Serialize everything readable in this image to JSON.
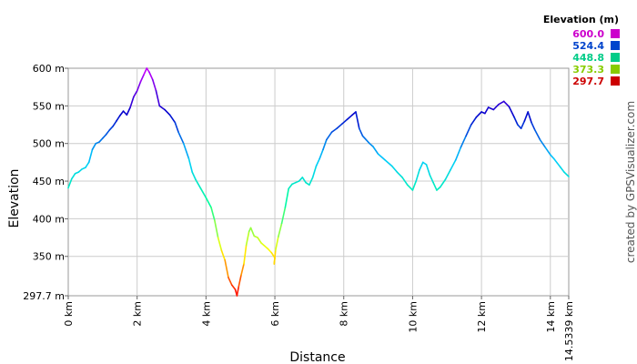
{
  "chart_data": {
    "type": "line",
    "xlabel": "Distance",
    "ylabel": "Elevation",
    "xlim": [
      0,
      14.5339
    ],
    "ylim": [
      297.7,
      600
    ],
    "x_ticks": [
      {
        "value": 0,
        "label": "0 km"
      },
      {
        "value": 2,
        "label": "2 km"
      },
      {
        "value": 4,
        "label": "4 km"
      },
      {
        "value": 6,
        "label": "6 km"
      },
      {
        "value": 8,
        "label": "8 km"
      },
      {
        "value": 10,
        "label": "10 km"
      },
      {
        "value": 12,
        "label": "12 km"
      },
      {
        "value": 14,
        "label": "14 km"
      },
      {
        "value": 14.5339,
        "label": "14.5339 km"
      }
    ],
    "y_ticks": [
      {
        "value": 297.7,
        "label": "297.7 m"
      },
      {
        "value": 350,
        "label": "350 m"
      },
      {
        "value": 400,
        "label": "400 m"
      },
      {
        "value": 450,
        "label": "450 m"
      },
      {
        "value": 500,
        "label": "500 m"
      },
      {
        "value": 550,
        "label": "550 m"
      },
      {
        "value": 600,
        "label": "600 m"
      }
    ],
    "grid": true,
    "legend": {
      "title": "Elevation (m)",
      "position": "top-right",
      "entries": [
        {
          "label": "600.0",
          "color": "#cc00cc"
        },
        {
          "label": "524.4",
          "color": "#0044cc"
        },
        {
          "label": "448.8",
          "color": "#00cc88"
        },
        {
          "label": "373.3",
          "color": "#88cc00"
        },
        {
          "label": "297.7",
          "color": "#cc0000"
        }
      ]
    },
    "color_scale": [
      "#ff0000",
      "#ffff00",
      "#00ff99",
      "#00ccff",
      "#0000cc",
      "#cc00ff"
    ],
    "points": [
      [
        0.0,
        441
      ],
      [
        0.1,
        453
      ],
      [
        0.2,
        460
      ],
      [
        0.3,
        462
      ],
      [
        0.4,
        466
      ],
      [
        0.5,
        468
      ],
      [
        0.6,
        475
      ],
      [
        0.7,
        492
      ],
      [
        0.8,
        500
      ],
      [
        0.9,
        502
      ],
      [
        1.0,
        507
      ],
      [
        1.1,
        512
      ],
      [
        1.2,
        518
      ],
      [
        1.3,
        523
      ],
      [
        1.4,
        530
      ],
      [
        1.5,
        537
      ],
      [
        1.55,
        540
      ],
      [
        1.6,
        543
      ],
      [
        1.7,
        538
      ],
      [
        1.8,
        548
      ],
      [
        1.9,
        562
      ],
      [
        2.0,
        570
      ],
      [
        2.1,
        582
      ],
      [
        2.2,
        592
      ],
      [
        2.28,
        600
      ],
      [
        2.35,
        595
      ],
      [
        2.45,
        585
      ],
      [
        2.55,
        570
      ],
      [
        2.65,
        550
      ],
      [
        2.8,
        545
      ],
      [
        2.95,
        538
      ],
      [
        3.1,
        528
      ],
      [
        3.2,
        515
      ],
      [
        3.35,
        500
      ],
      [
        3.5,
        480
      ],
      [
        3.6,
        462
      ],
      [
        3.7,
        452
      ],
      [
        3.85,
        440
      ],
      [
        4.0,
        428
      ],
      [
        4.15,
        415
      ],
      [
        4.25,
        398
      ],
      [
        4.35,
        375
      ],
      [
        4.45,
        358
      ],
      [
        4.55,
        345
      ],
      [
        4.65,
        322
      ],
      [
        4.75,
        312
      ],
      [
        4.85,
        306
      ],
      [
        4.9,
        297.7
      ],
      [
        4.95,
        310
      ],
      [
        5.02,
        325
      ],
      [
        5.1,
        340
      ],
      [
        5.17,
        365
      ],
      [
        5.25,
        383
      ],
      [
        5.3,
        388
      ],
      [
        5.4,
        377
      ],
      [
        5.5,
        375
      ],
      [
        5.6,
        368
      ],
      [
        5.7,
        364
      ],
      [
        5.8,
        360
      ],
      [
        5.9,
        355
      ],
      [
        6.0,
        348
      ],
      [
        5.98,
        340
      ],
      [
        6.02,
        358
      ],
      [
        6.1,
        376
      ],
      [
        6.2,
        394
      ],
      [
        6.3,
        415
      ],
      [
        6.4,
        440
      ],
      [
        6.5,
        446
      ],
      [
        6.6,
        448
      ],
      [
        6.7,
        450
      ],
      [
        6.8,
        455
      ],
      [
        6.9,
        448
      ],
      [
        7.0,
        445
      ],
      [
        7.1,
        455
      ],
      [
        7.2,
        470
      ],
      [
        7.3,
        480
      ],
      [
        7.4,
        492
      ],
      [
        7.5,
        505
      ],
      [
        7.65,
        515
      ],
      [
        7.8,
        520
      ],
      [
        7.95,
        526
      ],
      [
        8.1,
        532
      ],
      [
        8.25,
        538
      ],
      [
        8.35,
        542
      ],
      [
        8.45,
        520
      ],
      [
        8.55,
        510
      ],
      [
        8.65,
        505
      ],
      [
        8.75,
        500
      ],
      [
        8.85,
        496
      ],
      [
        9.0,
        486
      ],
      [
        9.2,
        478
      ],
      [
        9.4,
        470
      ],
      [
        9.55,
        462
      ],
      [
        9.7,
        455
      ],
      [
        9.85,
        445
      ],
      [
        10.0,
        438
      ],
      [
        10.1,
        450
      ],
      [
        10.2,
        465
      ],
      [
        10.3,
        475
      ],
      [
        10.4,
        472
      ],
      [
        10.5,
        458
      ],
      [
        10.6,
        448
      ],
      [
        10.7,
        438
      ],
      [
        10.8,
        442
      ],
      [
        10.95,
        452
      ],
      [
        11.1,
        465
      ],
      [
        11.25,
        478
      ],
      [
        11.4,
        495
      ],
      [
        11.55,
        510
      ],
      [
        11.7,
        525
      ],
      [
        11.85,
        535
      ],
      [
        12.0,
        542
      ],
      [
        12.1,
        540
      ],
      [
        12.2,
        548
      ],
      [
        12.35,
        545
      ],
      [
        12.5,
        552
      ],
      [
        12.65,
        556
      ],
      [
        12.8,
        549
      ],
      [
        12.95,
        535
      ],
      [
        13.05,
        525
      ],
      [
        13.15,
        520
      ],
      [
        13.25,
        530
      ],
      [
        13.35,
        542
      ],
      [
        13.45,
        528
      ],
      [
        13.55,
        518
      ],
      [
        13.7,
        505
      ],
      [
        13.85,
        495
      ],
      [
        14.0,
        485
      ],
      [
        14.1,
        480
      ],
      [
        14.2,
        474
      ],
      [
        14.3,
        468
      ],
      [
        14.4,
        462
      ],
      [
        14.5339,
        456
      ]
    ]
  },
  "credit": "created by GPSVisualizer.com"
}
